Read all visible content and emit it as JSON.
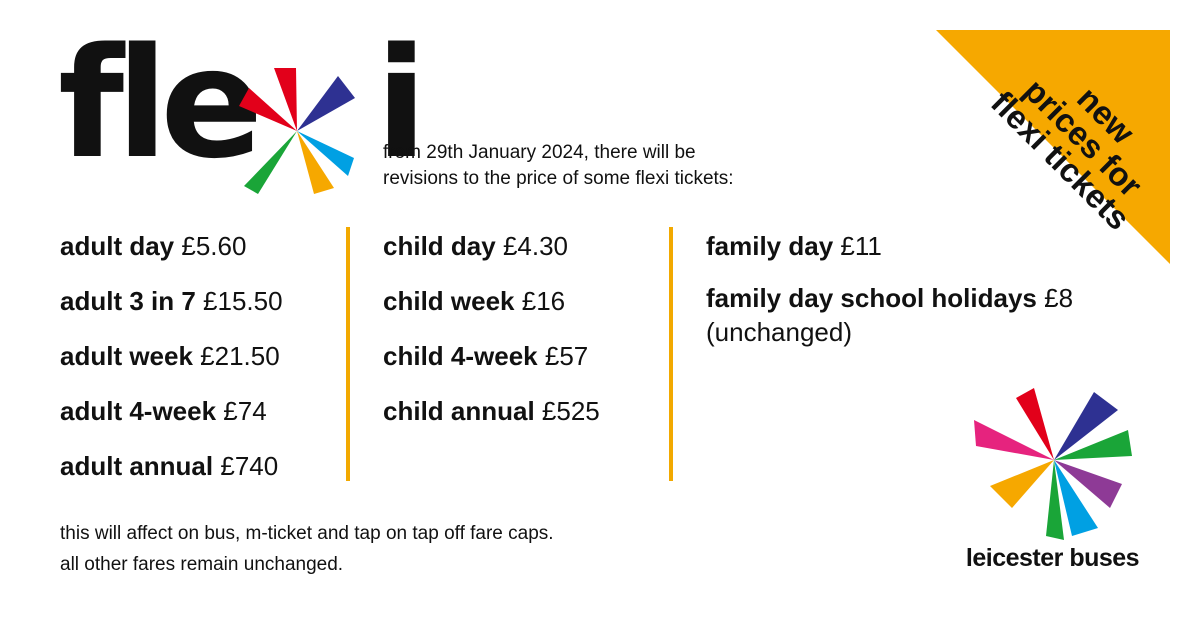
{
  "logo": {
    "text_left": "fle",
    "text_right": "i",
    "alt": "flexi"
  },
  "intro": {
    "line1": "from 29th January 2024, there will be",
    "line2": "revisions to the price of some flexi tickets:"
  },
  "adult": [
    {
      "name": "adult day",
      "price": "£5.60"
    },
    {
      "name": "adult 3 in 7",
      "price": "£15.50"
    },
    {
      "name": "adult week",
      "price": "£21.50"
    },
    {
      "name": "adult 4-week",
      "price": "£74"
    },
    {
      "name": "adult annual",
      "price": "£740"
    }
  ],
  "child": [
    {
      "name": "child day",
      "price": "£4.30"
    },
    {
      "name": "child week",
      "price": "£16"
    },
    {
      "name": "child 4-week",
      "price": "£57"
    },
    {
      "name": "child annual",
      "price": "£525"
    }
  ],
  "family": [
    {
      "name": "family day",
      "price": "£11"
    },
    {
      "name": "family day school holidays",
      "price": "£8",
      "note": "(unchanged)"
    }
  ],
  "footer": {
    "line1": "this will affect on bus, m-ticket and tap on tap off fare caps.",
    "line2": "all other fares remain unchanged."
  },
  "banner": {
    "line1": "new",
    "line2": "prices for",
    "line3": "flexi tickets",
    "color": "#f6a800"
  },
  "brand": {
    "name": "leicester buses"
  },
  "colors": {
    "accent": "#f2a900",
    "red": "#e2001a",
    "navy": "#2e3192",
    "green": "#1aa538",
    "purple": "#8e3a96",
    "cyan": "#00a0e3",
    "orange": "#f6a800",
    "pink": "#e6237e",
    "text": "#111111"
  }
}
